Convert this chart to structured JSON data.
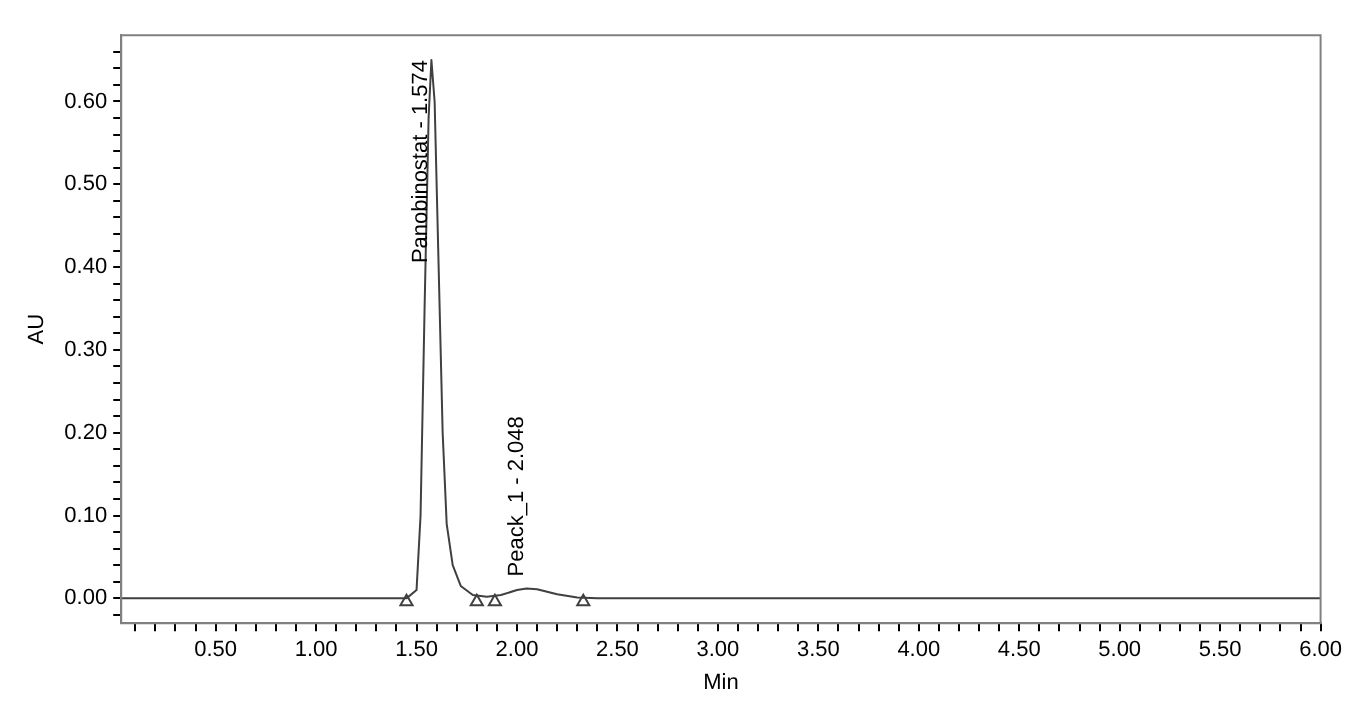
{
  "chart_data": {
    "type": "line",
    "xlabel": "Min",
    "ylabel": "AU",
    "xlim": [
      0.03,
      6.0
    ],
    "ylim": [
      -0.03,
      0.68
    ],
    "xticks": [
      {
        "value": 0.1,
        "label": null
      },
      {
        "value": 0.2,
        "label": null
      },
      {
        "value": 0.3,
        "label": null
      },
      {
        "value": 0.4,
        "label": null
      },
      {
        "value": 0.5,
        "label": "0.50"
      },
      {
        "value": 0.6,
        "label": null
      },
      {
        "value": 0.7,
        "label": null
      },
      {
        "value": 0.8,
        "label": null
      },
      {
        "value": 0.9,
        "label": null
      },
      {
        "value": 1.0,
        "label": "1.00"
      },
      {
        "value": 1.1,
        "label": null
      },
      {
        "value": 1.2,
        "label": null
      },
      {
        "value": 1.3,
        "label": null
      },
      {
        "value": 1.4,
        "label": null
      },
      {
        "value": 1.5,
        "label": "1.50"
      },
      {
        "value": 1.6,
        "label": null
      },
      {
        "value": 1.7,
        "label": null
      },
      {
        "value": 1.8,
        "label": null
      },
      {
        "value": 1.9,
        "label": null
      },
      {
        "value": 2.0,
        "label": "2.00"
      },
      {
        "value": 2.1,
        "label": null
      },
      {
        "value": 2.2,
        "label": null
      },
      {
        "value": 2.3,
        "label": null
      },
      {
        "value": 2.4,
        "label": null
      },
      {
        "value": 2.5,
        "label": "2.50"
      },
      {
        "value": 2.6,
        "label": null
      },
      {
        "value": 2.7,
        "label": null
      },
      {
        "value": 2.8,
        "label": null
      },
      {
        "value": 2.9,
        "label": null
      },
      {
        "value": 3.0,
        "label": "3.00"
      },
      {
        "value": 3.1,
        "label": null
      },
      {
        "value": 3.2,
        "label": null
      },
      {
        "value": 3.3,
        "label": null
      },
      {
        "value": 3.4,
        "label": null
      },
      {
        "value": 3.5,
        "label": "3.50"
      },
      {
        "value": 3.6,
        "label": null
      },
      {
        "value": 3.7,
        "label": null
      },
      {
        "value": 3.8,
        "label": null
      },
      {
        "value": 3.9,
        "label": null
      },
      {
        "value": 4.0,
        "label": "4.00"
      },
      {
        "value": 4.1,
        "label": null
      },
      {
        "value": 4.2,
        "label": null
      },
      {
        "value": 4.3,
        "label": null
      },
      {
        "value": 4.4,
        "label": null
      },
      {
        "value": 4.5,
        "label": "4.50"
      },
      {
        "value": 4.6,
        "label": null
      },
      {
        "value": 4.7,
        "label": null
      },
      {
        "value": 4.8,
        "label": null
      },
      {
        "value": 4.9,
        "label": null
      },
      {
        "value": 5.0,
        "label": "5.00"
      },
      {
        "value": 5.1,
        "label": null
      },
      {
        "value": 5.2,
        "label": null
      },
      {
        "value": 5.3,
        "label": null
      },
      {
        "value": 5.4,
        "label": null
      },
      {
        "value": 5.5,
        "label": "5.50"
      },
      {
        "value": 5.6,
        "label": null
      },
      {
        "value": 5.7,
        "label": null
      },
      {
        "value": 5.8,
        "label": null
      },
      {
        "value": 5.9,
        "label": null
      },
      {
        "value": 6.0,
        "label": "6.00"
      }
    ],
    "yticks": [
      {
        "value": -0.02,
        "label": null
      },
      {
        "value": 0.0,
        "label": "0.00"
      },
      {
        "value": 0.02,
        "label": null
      },
      {
        "value": 0.04,
        "label": null
      },
      {
        "value": 0.06,
        "label": null
      },
      {
        "value": 0.08,
        "label": null
      },
      {
        "value": 0.1,
        "label": "0.10"
      },
      {
        "value": 0.12,
        "label": null
      },
      {
        "value": 0.14,
        "label": null
      },
      {
        "value": 0.16,
        "label": null
      },
      {
        "value": 0.18,
        "label": null
      },
      {
        "value": 0.2,
        "label": "0.20"
      },
      {
        "value": 0.22,
        "label": null
      },
      {
        "value": 0.24,
        "label": null
      },
      {
        "value": 0.26,
        "label": null
      },
      {
        "value": 0.28,
        "label": null
      },
      {
        "value": 0.3,
        "label": "0.30"
      },
      {
        "value": 0.32,
        "label": null
      },
      {
        "value": 0.34,
        "label": null
      },
      {
        "value": 0.36,
        "label": null
      },
      {
        "value": 0.38,
        "label": null
      },
      {
        "value": 0.4,
        "label": "0.40"
      },
      {
        "value": 0.42,
        "label": null
      },
      {
        "value": 0.44,
        "label": null
      },
      {
        "value": 0.46,
        "label": null
      },
      {
        "value": 0.48,
        "label": null
      },
      {
        "value": 0.5,
        "label": "0.50"
      },
      {
        "value": 0.52,
        "label": null
      },
      {
        "value": 0.54,
        "label": null
      },
      {
        "value": 0.56,
        "label": null
      },
      {
        "value": 0.58,
        "label": null
      },
      {
        "value": 0.6,
        "label": "0.60"
      },
      {
        "value": 0.62,
        "label": null
      },
      {
        "value": 0.64,
        "label": null
      },
      {
        "value": 0.66,
        "label": null
      }
    ],
    "grid": false,
    "legend": false,
    "series": [
      {
        "type": "line",
        "color": "#404040",
        "marker": "none",
        "line_style": "solid",
        "x": [
          0.03,
          1.45,
          1.5,
          1.52,
          1.54,
          1.56,
          1.574,
          1.59,
          1.61,
          1.63,
          1.65,
          1.68,
          1.72,
          1.78,
          1.85,
          1.92,
          2.0,
          2.048,
          2.1,
          2.2,
          2.3,
          2.4,
          6.0
        ],
        "values": [
          0,
          0,
          0.01,
          0.1,
          0.35,
          0.58,
          0.65,
          0.6,
          0.4,
          0.2,
          0.09,
          0.04,
          0.015,
          0.004,
          0.002,
          0.004,
          0.01,
          0.012,
          0.011,
          0.005,
          0.001,
          0,
          0
        ]
      },
      {
        "type": "scatter",
        "color": "#404040",
        "marker": "triangle",
        "x": [
          1.45,
          1.8,
          1.89,
          2.33
        ],
        "values": [
          -0.004,
          -0.004,
          -0.004,
          -0.004
        ]
      }
    ],
    "annotations": [
      {
        "text": "Panobinostat - 1.574",
        "x": 1.574,
        "y": 0.65
      },
      {
        "text": "Peack_1 - 2.048",
        "x": 2.048,
        "y": 0.012
      }
    ]
  }
}
